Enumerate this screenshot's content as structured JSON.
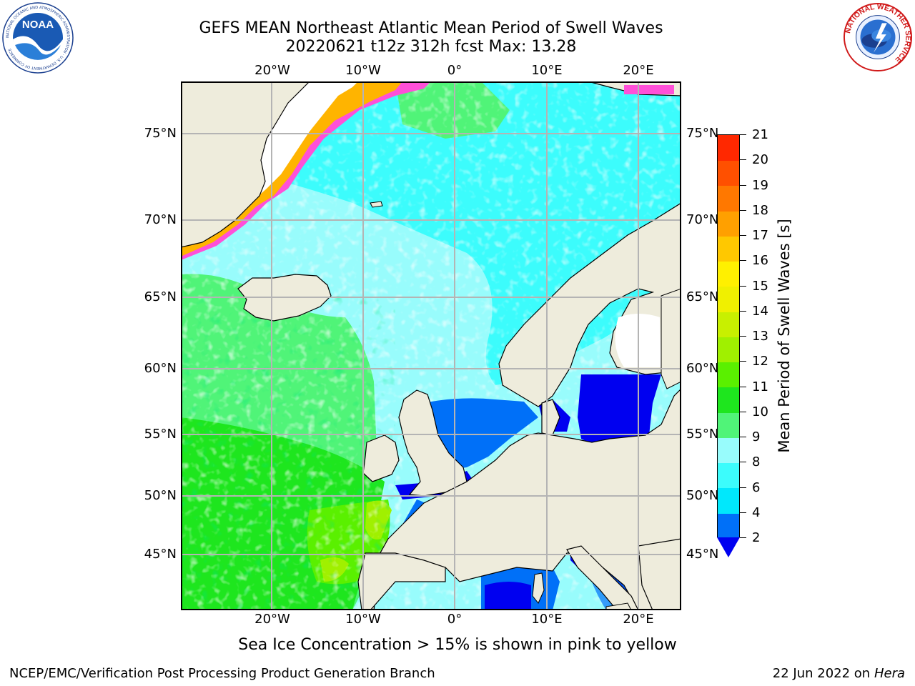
{
  "title": {
    "line1": "GEFS MEAN Northeast Atlantic Mean Period of Swell Waves",
    "line2": "20220621 t12z 312h fcst   Max: 13.28"
  },
  "map": {
    "lon_labels": [
      "20°W",
      "10°W",
      "0°",
      "10°E",
      "20°E"
    ],
    "lat_labels": [
      "75°N",
      "70°N",
      "65°N",
      "60°N",
      "55°N",
      "50°N",
      "45°N"
    ],
    "colors": {
      "land": "#eeecdc",
      "ice_free_white": "#ffffff",
      "grid": "#b4b4b4",
      "coast": "#000000"
    }
  },
  "colorbar": {
    "title": "Mean Period of Swell Waves [s]",
    "tick_labels": [
      "21",
      "20",
      "19",
      "18",
      "17",
      "16",
      "15",
      "14",
      "13",
      "12",
      "11",
      "10",
      "9",
      "8",
      "6",
      "4",
      "2"
    ],
    "colors_bottom_to_top": [
      "#0070f8",
      "#00e8fc",
      "#3cfcfc",
      "#98fcfc",
      "#50f478",
      "#1ee61e",
      "#5af000",
      "#a0f000",
      "#c8f000",
      "#f0f000",
      "#fff000",
      "#ffc800",
      "#ffa000",
      "#ff7800",
      "#ff5000",
      "#ff2800"
    ],
    "under_color": "#0000f0"
  },
  "note": "Sea Ice Concentration > 15% is shown in pink to yellow",
  "footer": {
    "left": "NCEP/EMC/Verification Post Processing Product Generation Branch",
    "date": "22 Jun 2022 on",
    "machine": "Hera"
  },
  "logos": {
    "noaa": {
      "text": "NOAA",
      "ring_text": "NATIONAL OCEANIC AND ATMOSPHERIC ADMINISTRATION · U.S. DEPARTMENT OF COMMERCE"
    },
    "nws": {
      "ring_text": "NATIONAL WEATHER SERVICE"
    }
  }
}
